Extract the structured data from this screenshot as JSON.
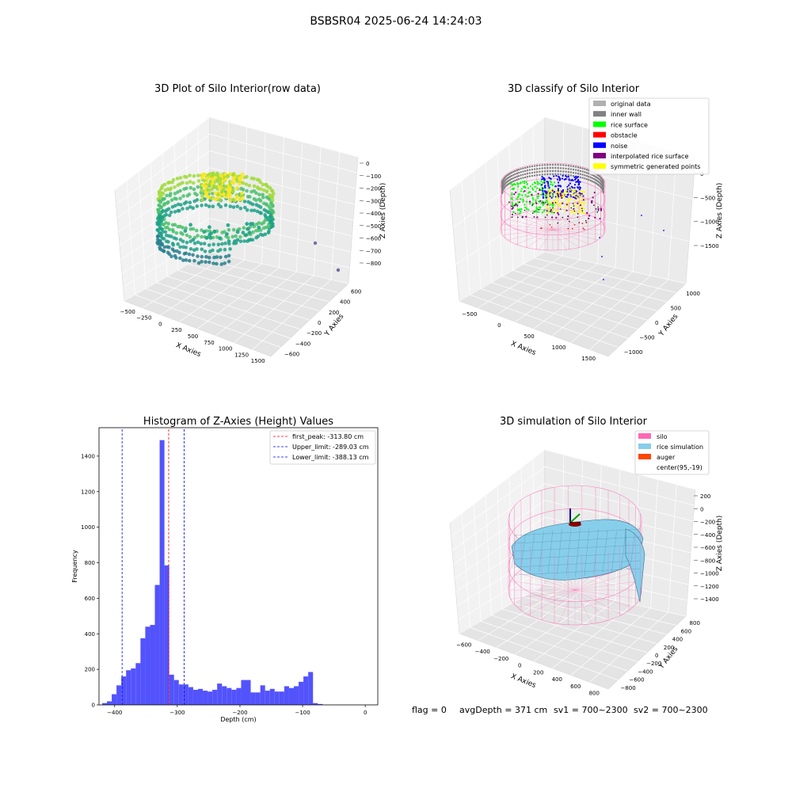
{
  "figure": {
    "suptitle": "BSBSR04 2025-06-24 14:24:03",
    "footer": {
      "flag": "flag = 0",
      "avg": "avgDepth = 371 cm",
      "sv1": "sv1 = 700~2300",
      "sv2": "sv2 = 700~2300"
    }
  },
  "chart_data": [
    {
      "type": "scatter",
      "title": "3D Plot of Silo Interior(row data)",
      "xlabel": "X Axies",
      "ylabel": "Y Axies",
      "zlabel": "Z Axies (Depth)",
      "x_ticks": [
        "−500",
        "−250",
        "0",
        "250",
        "500",
        "750",
        "1000",
        "1250",
        "1500"
      ],
      "y_ticks": [
        "−600",
        "−400",
        "−200",
        "0",
        "200",
        "400",
        "600"
      ],
      "z_ticks": [
        "0",
        "−100",
        "−200",
        "−300",
        "−400",
        "−500",
        "−600",
        "−700",
        "−800"
      ],
      "colormap": [
        "#46327e",
        "#277f8e",
        "#1fa187",
        "#4ac16d",
        "#a0da39",
        "#fde725"
      ]
    },
    {
      "type": "scatter",
      "title": "3D classify of Silo Interior",
      "xlabel": "X Axies",
      "ylabel": "Y Axies",
      "zlabel": "Z Axies (Depth)",
      "x_ticks": [
        "−500",
        "0",
        "500",
        "1000",
        "1500"
      ],
      "y_ticks": [
        "−1000",
        "−500",
        "0",
        "500",
        "1000"
      ],
      "z_ticks": [
        "0",
        "−500",
        "−1000",
        "−1500"
      ],
      "legend_position": "top-right",
      "legend": [
        {
          "label": "original data",
          "color": "#b0b0b0"
        },
        {
          "label": "inner wall",
          "color": "#808080"
        },
        {
          "label": "rice surface",
          "color": "#00ff00"
        },
        {
          "label": "obstacle",
          "color": "#ff0000"
        },
        {
          "label": "noise",
          "color": "#0000ff"
        },
        {
          "label": "interpolated rice surface",
          "color": "#800080"
        },
        {
          "label": "symmetric generated points",
          "color": "#ffff00"
        }
      ]
    },
    {
      "type": "bar",
      "title": "Histogram of Z-Axies (Height) Values",
      "xlabel": "Depth (cm)",
      "ylabel": "Frequency",
      "xlim": [
        -425,
        20
      ],
      "ylim": [
        0,
        1560
      ],
      "x_ticks": [
        -400,
        -300,
        -200,
        -100,
        0
      ],
      "y_ticks": [
        0,
        200,
        400,
        600,
        800,
        1000,
        1200,
        1400
      ],
      "bar_color": "#4a4afc",
      "bin_start": -420,
      "bin_width": 7.65,
      "values": [
        10,
        20,
        60,
        110,
        160,
        195,
        205,
        235,
        375,
        440,
        450,
        675,
        1490,
        785,
        170,
        140,
        115,
        115,
        100,
        85,
        90,
        80,
        75,
        85,
        120,
        105,
        95,
        85,
        95,
        140,
        140,
        70,
        70,
        110,
        80,
        90,
        75,
        75,
        105,
        95,
        105,
        130,
        160,
        185,
        10,
        5
      ],
      "legend_position": "top-right",
      "lines": [
        {
          "label": "first_peak: -313.80 cm",
          "x": -313.8,
          "color": "#ff0000"
        },
        {
          "label": "Upper_limit: -289.03 cm",
          "x": -289.03,
          "color": "#0000ff"
        },
        {
          "label": "Lower_limit: -388.13 cm",
          "x": -388.13,
          "color": "#0000ff"
        }
      ]
    },
    {
      "type": "area",
      "title": "3D simulation of Silo Interior",
      "xlabel": "X Axies",
      "ylabel": "Y Axies",
      "zlabel": "Z Axies (Depth)",
      "x_ticks": [
        "−600",
        "−400",
        "−200",
        "0",
        "200",
        "400",
        "600",
        "800"
      ],
      "y_ticks": [
        "−800",
        "−600",
        "−400",
        "−200",
        "0",
        "200",
        "400",
        "600",
        "800"
      ],
      "z_ticks": [
        "200",
        "0",
        "−200",
        "−400",
        "−600",
        "−800",
        "−1000",
        "−1200",
        "−1400"
      ],
      "legend_position": "top-right",
      "legend": [
        {
          "label": "silo",
          "color": "#ff69b4"
        },
        {
          "label": "rice simulation",
          "color": "#87ceeb"
        },
        {
          "label": "auger",
          "color": "#ff4500"
        },
        {
          "label": "center(95,-19)",
          "color": ""
        }
      ]
    }
  ]
}
